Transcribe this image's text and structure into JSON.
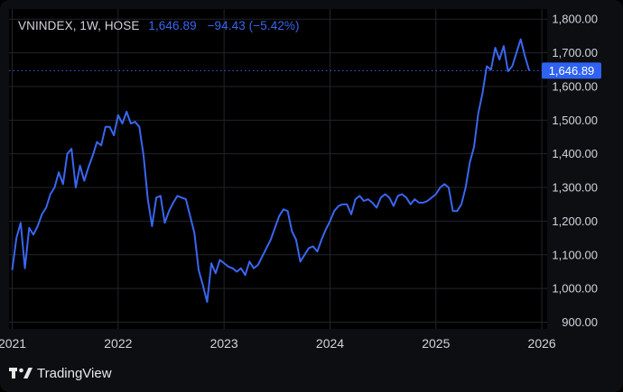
{
  "header": {
    "symbol": "VNINDEX, 1W, HOSE",
    "last": "1,646.89",
    "change": "−94.43 (−5.42%)"
  },
  "price_label": "1,646.89",
  "brand": {
    "name": "TradingView"
  },
  "colors": {
    "line": "#3a66f0",
    "background": "#000000",
    "grid": "#22252b",
    "axis_text": "#d1d4dc"
  },
  "chart_data": {
    "type": "line",
    "title": "VNINDEX, 1W, HOSE",
    "ylim": [
      880,
      1830
    ],
    "y_ticks": [
      900,
      1000,
      1100,
      1200,
      1300,
      1400,
      1500,
      1600,
      1700,
      1800
    ],
    "y_tick_labels": [
      "900.00",
      "1,000.00",
      "1,100.00",
      "1,200.00",
      "1,300.00",
      "1,400.00",
      "1,500.00",
      "1,600.00",
      "1,700.00",
      "1,800.00"
    ],
    "x_range": [
      2020.97,
      2026.05
    ],
    "x_ticks": [
      2021,
      2022,
      2023,
      2024,
      2025,
      2026
    ],
    "x_tick_labels": [
      "2021",
      "2022",
      "2023",
      "2024",
      "2025",
      "2026"
    ],
    "last_value": 1646.89,
    "series": [
      {
        "x": [
          2021.0,
          2021.04,
          2021.08,
          2021.12,
          2021.16,
          2021.2,
          2021.24,
          2021.28,
          2021.32,
          2021.36,
          2021.4,
          2021.44,
          2021.48,
          2021.52,
          2021.56,
          2021.6,
          2021.64,
          2021.68,
          2021.72,
          2021.76,
          2021.8,
          2021.84,
          2021.88,
          2021.92,
          2021.96,
          2022.0,
          2022.04,
          2022.08,
          2022.12,
          2022.16,
          2022.2,
          2022.24,
          2022.28,
          2022.32,
          2022.36,
          2022.4,
          2022.44,
          2022.48,
          2022.52,
          2022.56,
          2022.6,
          2022.64,
          2022.68,
          2022.72,
          2022.76,
          2022.8,
          2022.84,
          2022.88,
          2022.92,
          2022.96,
          2023.0,
          2023.04,
          2023.08,
          2023.12,
          2023.16,
          2023.2,
          2023.24,
          2023.28,
          2023.32,
          2023.36,
          2023.4,
          2023.44,
          2023.48,
          2023.52,
          2023.56,
          2023.6,
          2023.64,
          2023.68,
          2023.72,
          2023.76,
          2023.8,
          2023.84,
          2023.88,
          2023.92,
          2023.96,
          2024.0,
          2024.04,
          2024.08,
          2024.12,
          2024.16,
          2024.2,
          2024.24,
          2024.28,
          2024.32,
          2024.36,
          2024.4,
          2024.44,
          2024.48,
          2024.52,
          2024.56,
          2024.6,
          2024.64,
          2024.68,
          2024.72,
          2024.76,
          2024.8,
          2024.84,
          2024.88,
          2024.92,
          2024.96,
          2025.0,
          2025.04,
          2025.08,
          2025.12,
          2025.16,
          2025.2,
          2025.24,
          2025.28,
          2025.32,
          2025.36,
          2025.4,
          2025.44,
          2025.48,
          2025.52,
          2025.56,
          2025.6,
          2025.64,
          2025.68,
          2025.72,
          2025.76,
          2025.8,
          2025.84,
          2025.88
        ],
        "y": [
          1055,
          1150,
          1195,
          1060,
          1180,
          1160,
          1185,
          1220,
          1240,
          1280,
          1300,
          1345,
          1310,
          1400,
          1415,
          1300,
          1365,
          1320,
          1360,
          1395,
          1435,
          1425,
          1480,
          1480,
          1455,
          1515,
          1490,
          1525,
          1490,
          1495,
          1480,
          1395,
          1265,
          1185,
          1270,
          1275,
          1195,
          1230,
          1255,
          1275,
          1270,
          1265,
          1215,
          1165,
          1055,
          1010,
          960,
          1075,
          1045,
          1085,
          1075,
          1065,
          1060,
          1050,
          1060,
          1040,
          1080,
          1060,
          1070,
          1095,
          1120,
          1145,
          1180,
          1215,
          1235,
          1230,
          1170,
          1145,
          1080,
          1100,
          1120,
          1125,
          1110,
          1145,
          1175,
          1200,
          1230,
          1245,
          1250,
          1250,
          1220,
          1265,
          1275,
          1260,
          1265,
          1255,
          1240,
          1270,
          1280,
          1270,
          1245,
          1275,
          1280,
          1270,
          1250,
          1265,
          1255,
          1255,
          1260,
          1270,
          1280,
          1300,
          1310,
          1300,
          1230,
          1230,
          1250,
          1300,
          1375,
          1420,
          1520,
          1580,
          1660,
          1650,
          1715,
          1680,
          1720,
          1645,
          1660,
          1700,
          1740,
          1690,
          1647
        ]
      }
    ]
  }
}
